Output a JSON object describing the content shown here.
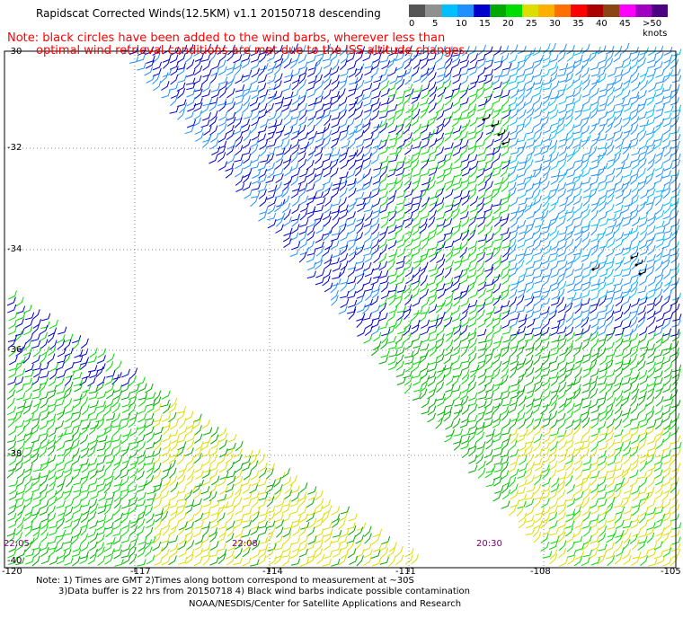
{
  "header": {
    "title": "Rapidscat Corrected Winds(12.5KM) v1.1 20150718 descending",
    "note_line1": "Note: black circles have been added to the wind barbs, wherever less than",
    "note_line2": "optimal wind retrieval conditions are met due to the ISS altitude changes."
  },
  "legend": {
    "colors": [
      "#555555",
      "#909090",
      "#00bfff",
      "#1e90ff",
      "#0000cd",
      "#00aa00",
      "#00dd00",
      "#dddd00",
      "#ffb000",
      "#ff7000",
      "#ff0000",
      "#aa0000",
      "#8b4513",
      "#ff00ff",
      "#a000c0",
      "#4b0082"
    ],
    "labels": [
      "0",
      "5",
      "10",
      "15",
      "20",
      "25",
      "30",
      "35",
      "40",
      "45",
      ">50 knots"
    ]
  },
  "axes": {
    "lat_labels": [
      "-30",
      "-32",
      "-34",
      "-36",
      "-38",
      "-40"
    ],
    "lon_labels": [
      "-120",
      "-117",
      "-114",
      "-111",
      "-108",
      "-105"
    ]
  },
  "times": [
    "22:05",
    "22:08",
    "20:30"
  ],
  "footer": {
    "line1": "Note: 1) Times are GMT 2)Times along bottom correspond to measurement at ~30S",
    "line2": "3)Data buffer is 22 hrs from 20150718 4) Black wind barbs indicate possible contamination",
    "line3": "NOAA/NESDIS/Center for Satellite Applications and Research"
  }
}
